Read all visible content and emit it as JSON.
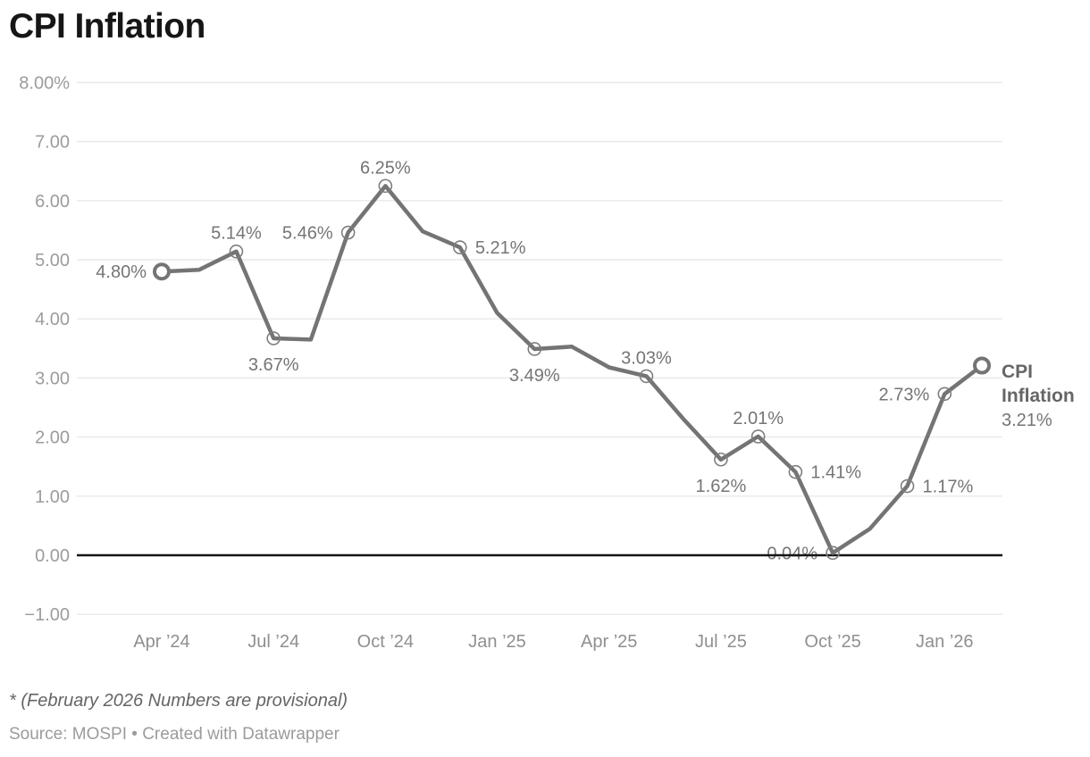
{
  "header": {
    "title": "CPI Inflation"
  },
  "footer": {
    "footnote": "* (February 2026 Numbers are provisional)",
    "source": "Source: MOSPI • Created with Datawrapper"
  },
  "chart_data": {
    "type": "line",
    "title": "CPI Inflation",
    "series_name": "CPI Inflation",
    "unit": "%",
    "xlabel": "",
    "ylabel": "",
    "ylim": [
      -1,
      8
    ],
    "grid": "horizontal",
    "legend_position": "right-of-last-point",
    "y_ticks": [
      {
        "value": 8,
        "label": "8.00%"
      },
      {
        "value": 7,
        "label": "7.00"
      },
      {
        "value": 6,
        "label": "6.00"
      },
      {
        "value": 5,
        "label": "5.00"
      },
      {
        "value": 4,
        "label": "4.00"
      },
      {
        "value": 3,
        "label": "3.00"
      },
      {
        "value": 2,
        "label": "2.00"
      },
      {
        "value": 1,
        "label": "1.00"
      },
      {
        "value": 0,
        "label": "0.00"
      },
      {
        "value": -1,
        "label": "−1.00"
      }
    ],
    "x_ticks": [
      {
        "index": 0,
        "label": "Apr ’24"
      },
      {
        "index": 3,
        "label": "Jul ’24"
      },
      {
        "index": 6,
        "label": "Oct ’24"
      },
      {
        "index": 9,
        "label": "Jan ’25"
      },
      {
        "index": 12,
        "label": "Apr ’25"
      },
      {
        "index": 15,
        "label": "Jul ’25"
      },
      {
        "index": 18,
        "label": "Oct ’25"
      },
      {
        "index": 21,
        "label": "Jan ’26"
      }
    ],
    "points": [
      {
        "month": "Apr ’24",
        "value": 4.8,
        "label": "4.80%",
        "label_pos": "left",
        "marker": "big"
      },
      {
        "month": "May ’24",
        "value": 4.83
      },
      {
        "month": "Jun ’24",
        "value": 5.14,
        "label": "5.14%",
        "label_pos": "above",
        "marker": "small"
      },
      {
        "month": "Jul ’24",
        "value": 3.67,
        "label": "3.67%",
        "label_pos": "below",
        "marker": "small"
      },
      {
        "month": "Aug ’24",
        "value": 3.65
      },
      {
        "month": "Sep ’24",
        "value": 5.46,
        "label": "5.46%",
        "label_pos": "left",
        "marker": "small"
      },
      {
        "month": "Oct ’24",
        "value": 6.25,
        "label": "6.25%",
        "label_pos": "above",
        "marker": "small"
      },
      {
        "month": "Nov ’24",
        "value": 5.48
      },
      {
        "month": "Dec ’24",
        "value": 5.21,
        "label": "5.21%",
        "label_pos": "right",
        "marker": "small"
      },
      {
        "month": "Jan ’25",
        "value": 4.1
      },
      {
        "month": "Feb ’25",
        "value": 3.49,
        "label": "3.49%",
        "label_pos": "below",
        "marker": "small"
      },
      {
        "month": "Mar ’25",
        "value": 3.53
      },
      {
        "month": "Apr ’25",
        "value": 3.18
      },
      {
        "month": "May ’25",
        "value": 3.03,
        "label": "3.03%",
        "label_pos": "above",
        "marker": "small"
      },
      {
        "month": "Jun ’25",
        "value": 2.3
      },
      {
        "month": "Jul ’25",
        "value": 1.62,
        "label": "1.62%",
        "label_pos": "below",
        "marker": "small"
      },
      {
        "month": "Aug ’25",
        "value": 2.01,
        "label": "2.01%",
        "label_pos": "above",
        "marker": "small"
      },
      {
        "month": "Sep ’25",
        "value": 1.41,
        "label": "1.41%",
        "label_pos": "right",
        "marker": "small"
      },
      {
        "month": "Oct ’25",
        "value": 0.04,
        "label": "0.04%",
        "label_pos": "left",
        "marker": "small"
      },
      {
        "month": "Nov ’25",
        "value": 0.45
      },
      {
        "month": "Dec ’25",
        "value": 1.17,
        "label": "1.17%",
        "label_pos": "right",
        "marker": "small"
      },
      {
        "month": "Jan ’26",
        "value": 2.73,
        "label": "2.73%",
        "label_pos": "left",
        "marker": "small"
      },
      {
        "month": "Feb ’26",
        "value": 3.21,
        "marker": "big"
      }
    ],
    "legend": {
      "name_lines": [
        "CPI",
        "Inflation"
      ],
      "value": "3.21%"
    },
    "colors": {
      "line": "#747474",
      "marker_ring": "#7e7e7e",
      "value_label": "#757575",
      "y_axis_label": "#9c9c9c",
      "x_axis_label": "#8f8f8f",
      "gridline": "#e8e8e8",
      "zero_line": "#141414",
      "title": "#161616",
      "legend_name": "#666666",
      "background": "#ffffff"
    }
  }
}
